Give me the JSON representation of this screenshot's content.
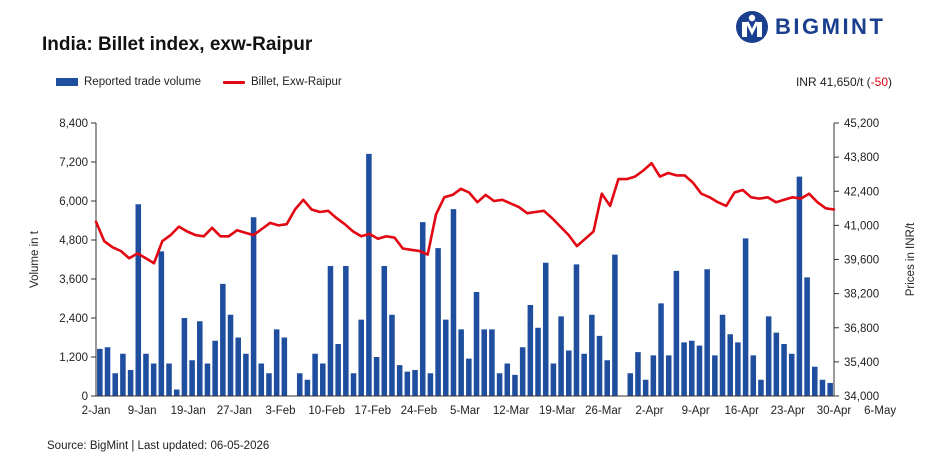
{
  "header": {
    "title": "India: Billet index, exw-Raipur",
    "brand": "BIGMINT",
    "price_label": "INR 41,650/t",
    "price_change_open": "(",
    "price_change": "-50",
    "price_change_close": ")"
  },
  "legend": {
    "bar_label": "Reported trade volume",
    "line_label": "Billet, Exw-Raipur"
  },
  "footer": {
    "source": "Source: BigMint | Last updated: 06-05-2026"
  },
  "colors": {
    "bars": "#1f4e9e",
    "line": "#e30613",
    "brand": "#1a3f8f"
  },
  "chart_data": {
    "type": "bar",
    "title": "India: Billet index, exw-Raipur",
    "ylabel": "Volume in t",
    "y2label": "Prices in INR/t",
    "ylim": [
      0,
      8400
    ],
    "yticks": [
      0,
      1200,
      2400,
      3600,
      4800,
      6000,
      7200,
      8400
    ],
    "y2lim": [
      34000,
      45200
    ],
    "y2ticks": [
      34000,
      35400,
      36800,
      38200,
      39600,
      41000,
      42400,
      43800,
      45200
    ],
    "ytick_labels": [
      "0",
      "1,200",
      "2,400",
      "3,600",
      "4,800",
      "6,000",
      "7,200",
      "8,400"
    ],
    "y2tick_labels": [
      "34,000",
      "35,400",
      "36,800",
      "38,200",
      "39,600",
      "41,000",
      "42,400",
      "43,800",
      "45,200"
    ],
    "xtick_labels": [
      "2-Jan",
      "9-Jan",
      "19-Jan",
      "27-Jan",
      "3-Feb",
      "10-Feb",
      "17-Feb",
      "24-Feb",
      "5-Mar",
      "12-Mar",
      "19-Mar",
      "26-Mar",
      "2-Apr",
      "9-Apr",
      "16-Apr",
      "23-Apr",
      "30-Apr",
      "6-May"
    ],
    "xtick_index": [
      0,
      6,
      12,
      18,
      24,
      30,
      36,
      42,
      48,
      54,
      60,
      66,
      72,
      78,
      84,
      90,
      96,
      102
    ],
    "grid": false,
    "legend_position": "top-left",
    "series": [
      {
        "name": "Reported trade volume",
        "type": "bar",
        "axis": "left",
        "values": [
          1450,
          1500,
          700,
          1300,
          800,
          5900,
          1300,
          1000,
          4450,
          1000,
          200,
          2400,
          1100,
          2300,
          1000,
          1700,
          3450,
          2500,
          1800,
          1300,
          5500,
          1000,
          700,
          2050,
          1800,
          0,
          700,
          500,
          1300,
          1000,
          4000,
          1600,
          4000,
          700,
          2350,
          7450,
          1200,
          4000,
          2500,
          950,
          750,
          800,
          5350,
          700,
          4550,
          2350,
          5750,
          2050,
          1150,
          3200,
          2050,
          2050,
          700,
          1000,
          650,
          1500,
          2800,
          2100,
          4100,
          1000,
          2450,
          1400,
          4050,
          1300,
          2500,
          1850,
          1100,
          4350,
          0,
          700,
          1350,
          500,
          1250,
          2850,
          1250,
          3850,
          1650,
          1700,
          1550,
          3900,
          1250,
          2500,
          1900,
          1650,
          4850,
          1250,
          500,
          2450,
          1950,
          1600,
          1300,
          6750,
          3650,
          900,
          500,
          400
        ]
      },
      {
        "name": "Billet, Exw-Raipur",
        "type": "line",
        "axis": "right",
        "values": [
          41150,
          40350,
          40100,
          39950,
          39650,
          39850,
          39650,
          39450,
          40350,
          40600,
          40950,
          40750,
          40600,
          40550,
          40900,
          40550,
          40550,
          40800,
          40700,
          40600,
          40850,
          41100,
          41000,
          41050,
          41650,
          42050,
          41650,
          41550,
          41600,
          41300,
          41050,
          40750,
          40550,
          40650,
          40450,
          40550,
          40500,
          40050,
          40000,
          39950,
          39800,
          41450,
          42150,
          42250,
          42500,
          42350,
          41950,
          42250,
          42000,
          42050,
          41900,
          41750,
          41500,
          41550,
          41600,
          41300,
          40950,
          40600,
          40150,
          40450,
          40750,
          42300,
          41800,
          42900,
          42900,
          43000,
          43250,
          43550,
          43000,
          43150,
          43050,
          43050,
          42750,
          42300,
          42150,
          41950,
          41800,
          42350,
          42450,
          42150,
          42100,
          42150,
          41950,
          42050,
          42150,
          42100,
          42300,
          41950,
          41700,
          41650
        ]
      }
    ]
  }
}
